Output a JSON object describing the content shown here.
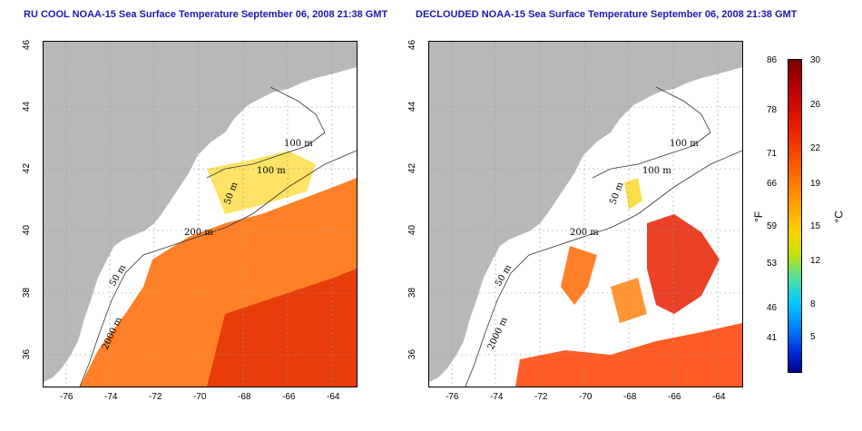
{
  "left_panel": {
    "title": "RU COOL NOAA-15 Sea Surface Temperature September 06, 2008 21:38 GMT"
  },
  "right_panel": {
    "title": "DECLOUDED NOAA-15 Sea Surface Temperature September 06, 2008 21:38 GMT"
  },
  "x_ticks": [
    "-76",
    "-74",
    "-72",
    "-70",
    "-68",
    "-66",
    "-64"
  ],
  "y_ticks": [
    "46",
    "44",
    "42",
    "40",
    "38",
    "36"
  ],
  "contour_labels": [
    "100 m",
    "100 m",
    "50 m",
    "200 m",
    "50 m",
    "2000 m"
  ],
  "colorbar": {
    "fahrenheit_unit": "°F",
    "celsius_unit": "°C",
    "fahrenheit_ticks": [
      "86",
      "78",
      "71",
      "66",
      "59",
      "53",
      "46",
      "41"
    ],
    "celsius_ticks": [
      "30",
      "26",
      "22",
      "19",
      "15",
      "12",
      "8",
      "5"
    ],
    "colors": {
      "hot": "#c00000",
      "warm": "#ff6000",
      "mid": "#ffd000",
      "cool": "#00c8ff",
      "cold": "#00008a"
    }
  },
  "land_color": "#b8b8b8"
}
